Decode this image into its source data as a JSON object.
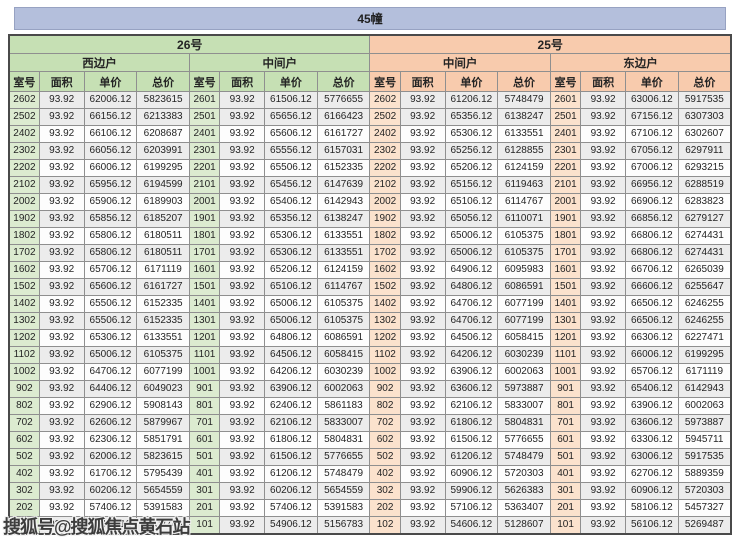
{
  "title": "45幢",
  "watermark": "搜狐号@搜狐焦点黄石站",
  "colors": {
    "title_bar": "#b4bfdc",
    "green_header": "#c6e0b4",
    "peach_header": "#f8cbad",
    "green_room_cell": "#dcebd0",
    "peach_room_cell": "#fbe2cd",
    "band_gray": "#ececec"
  },
  "table": {
    "groups": [
      {
        "building": "26号",
        "units": [
          "西边户",
          "中间户"
        ]
      },
      {
        "building": "25号",
        "units": [
          "中间户",
          "东边户"
        ]
      }
    ],
    "column_headers": [
      "室号",
      "面积",
      "单价",
      "总价"
    ],
    "rows": [
      [
        "2602",
        "93.92",
        "62006.12",
        "5823615",
        "2601",
        "93.92",
        "61506.12",
        "5776655",
        "2602",
        "93.92",
        "61206.12",
        "5748479",
        "2601",
        "93.92",
        "63006.12",
        "5917535"
      ],
      [
        "2502",
        "93.92",
        "66156.12",
        "6213383",
        "2501",
        "93.92",
        "65656.12",
        "6166423",
        "2502",
        "93.92",
        "65356.12",
        "6138247",
        "2501",
        "93.92",
        "67156.12",
        "6307303"
      ],
      [
        "2402",
        "93.92",
        "66106.12",
        "6208687",
        "2401",
        "93.92",
        "65606.12",
        "6161727",
        "2402",
        "93.92",
        "65306.12",
        "6133551",
        "2401",
        "93.92",
        "67106.12",
        "6302607"
      ],
      [
        "2302",
        "93.92",
        "66056.12",
        "6203991",
        "2301",
        "93.92",
        "65556.12",
        "6157031",
        "2302",
        "93.92",
        "65256.12",
        "6128855",
        "2301",
        "93.92",
        "67056.12",
        "6297911"
      ],
      [
        "2202",
        "93.92",
        "66006.12",
        "6199295",
        "2201",
        "93.92",
        "65506.12",
        "6152335",
        "2202",
        "93.92",
        "65206.12",
        "6124159",
        "2201",
        "93.92",
        "67006.12",
        "6293215"
      ],
      [
        "2102",
        "93.92",
        "65956.12",
        "6194599",
        "2101",
        "93.92",
        "65456.12",
        "6147639",
        "2102",
        "93.92",
        "65156.12",
        "6119463",
        "2101",
        "93.92",
        "66956.12",
        "6288519"
      ],
      [
        "2002",
        "93.92",
        "65906.12",
        "6189903",
        "2001",
        "93.92",
        "65406.12",
        "6142943",
        "2002",
        "93.92",
        "65106.12",
        "6114767",
        "2001",
        "93.92",
        "66906.12",
        "6283823"
      ],
      [
        "1902",
        "93.92",
        "65856.12",
        "6185207",
        "1901",
        "93.92",
        "65356.12",
        "6138247",
        "1902",
        "93.92",
        "65056.12",
        "6110071",
        "1901",
        "93.92",
        "66856.12",
        "6279127"
      ],
      [
        "1802",
        "93.92",
        "65806.12",
        "6180511",
        "1801",
        "93.92",
        "65306.12",
        "6133551",
        "1802",
        "93.92",
        "65006.12",
        "6105375",
        "1801",
        "93.92",
        "66806.12",
        "6274431"
      ],
      [
        "1702",
        "93.92",
        "65806.12",
        "6180511",
        "1701",
        "93.92",
        "65306.12",
        "6133551",
        "1702",
        "93.92",
        "65006.12",
        "6105375",
        "1701",
        "93.92",
        "66806.12",
        "6274431"
      ],
      [
        "1602",
        "93.92",
        "65706.12",
        "6171119",
        "1601",
        "93.92",
        "65206.12",
        "6124159",
        "1602",
        "93.92",
        "64906.12",
        "6095983",
        "1601",
        "93.92",
        "66706.12",
        "6265039"
      ],
      [
        "1502",
        "93.92",
        "65606.12",
        "6161727",
        "1501",
        "93.92",
        "65106.12",
        "6114767",
        "1502",
        "93.92",
        "64806.12",
        "6086591",
        "1501",
        "93.92",
        "66606.12",
        "6255647"
      ],
      [
        "1402",
        "93.92",
        "65506.12",
        "6152335",
        "1401",
        "93.92",
        "65006.12",
        "6105375",
        "1402",
        "93.92",
        "64706.12",
        "6077199",
        "1401",
        "93.92",
        "66506.12",
        "6246255"
      ],
      [
        "1302",
        "93.92",
        "65506.12",
        "6152335",
        "1301",
        "93.92",
        "65006.12",
        "6105375",
        "1302",
        "93.92",
        "64706.12",
        "6077199",
        "1301",
        "93.92",
        "66506.12",
        "6246255"
      ],
      [
        "1202",
        "93.92",
        "65306.12",
        "6133551",
        "1201",
        "93.92",
        "64806.12",
        "6086591",
        "1202",
        "93.92",
        "64506.12",
        "6058415",
        "1201",
        "93.92",
        "66306.12",
        "6227471"
      ],
      [
        "1102",
        "93.92",
        "65006.12",
        "6105375",
        "1101",
        "93.92",
        "64506.12",
        "6058415",
        "1102",
        "93.92",
        "64206.12",
        "6030239",
        "1101",
        "93.92",
        "66006.12",
        "6199295"
      ],
      [
        "1002",
        "93.92",
        "64706.12",
        "6077199",
        "1001",
        "93.92",
        "64206.12",
        "6030239",
        "1002",
        "93.92",
        "63906.12",
        "6002063",
        "1001",
        "93.92",
        "65706.12",
        "6171119"
      ],
      [
        "902",
        "93.92",
        "64406.12",
        "6049023",
        "901",
        "93.92",
        "63906.12",
        "6002063",
        "902",
        "93.92",
        "63606.12",
        "5973887",
        "901",
        "93.92",
        "65406.12",
        "6142943"
      ],
      [
        "802",
        "93.92",
        "62906.12",
        "5908143",
        "801",
        "93.92",
        "62406.12",
        "5861183",
        "802",
        "93.92",
        "62106.12",
        "5833007",
        "801",
        "93.92",
        "63906.12",
        "6002063"
      ],
      [
        "702",
        "93.92",
        "62606.12",
        "5879967",
        "701",
        "93.92",
        "62106.12",
        "5833007",
        "702",
        "93.92",
        "61806.12",
        "5804831",
        "701",
        "93.92",
        "63606.12",
        "5973887"
      ],
      [
        "602",
        "93.92",
        "62306.12",
        "5851791",
        "601",
        "93.92",
        "61806.12",
        "5804831",
        "602",
        "93.92",
        "61506.12",
        "5776655",
        "601",
        "93.92",
        "63306.12",
        "5945711"
      ],
      [
        "502",
        "93.92",
        "62006.12",
        "5823615",
        "501",
        "93.92",
        "61506.12",
        "5776655",
        "502",
        "93.92",
        "61206.12",
        "5748479",
        "501",
        "93.92",
        "63006.12",
        "5917535"
      ],
      [
        "402",
        "93.92",
        "61706.12",
        "5795439",
        "401",
        "93.92",
        "61206.12",
        "5748479",
        "402",
        "93.92",
        "60906.12",
        "5720303",
        "401",
        "93.92",
        "62706.12",
        "5889359"
      ],
      [
        "302",
        "93.92",
        "60206.12",
        "5654559",
        "301",
        "93.92",
        "60206.12",
        "5654559",
        "302",
        "93.92",
        "59906.12",
        "5626383",
        "301",
        "93.92",
        "60906.12",
        "5720303"
      ],
      [
        "202",
        "93.92",
        "57406.12",
        "5391583",
        "201",
        "93.92",
        "57406.12",
        "5391583",
        "202",
        "93.92",
        "57106.12",
        "5363407",
        "201",
        "93.92",
        "58106.12",
        "5457327"
      ],
      [
        "102",
        "93.92",
        "55406.12",
        "5203743",
        "101",
        "93.92",
        "54906.12",
        "5156783",
        "102",
        "93.92",
        "54606.12",
        "5128607",
        "101",
        "93.92",
        "56106.12",
        "5269487"
      ]
    ]
  }
}
